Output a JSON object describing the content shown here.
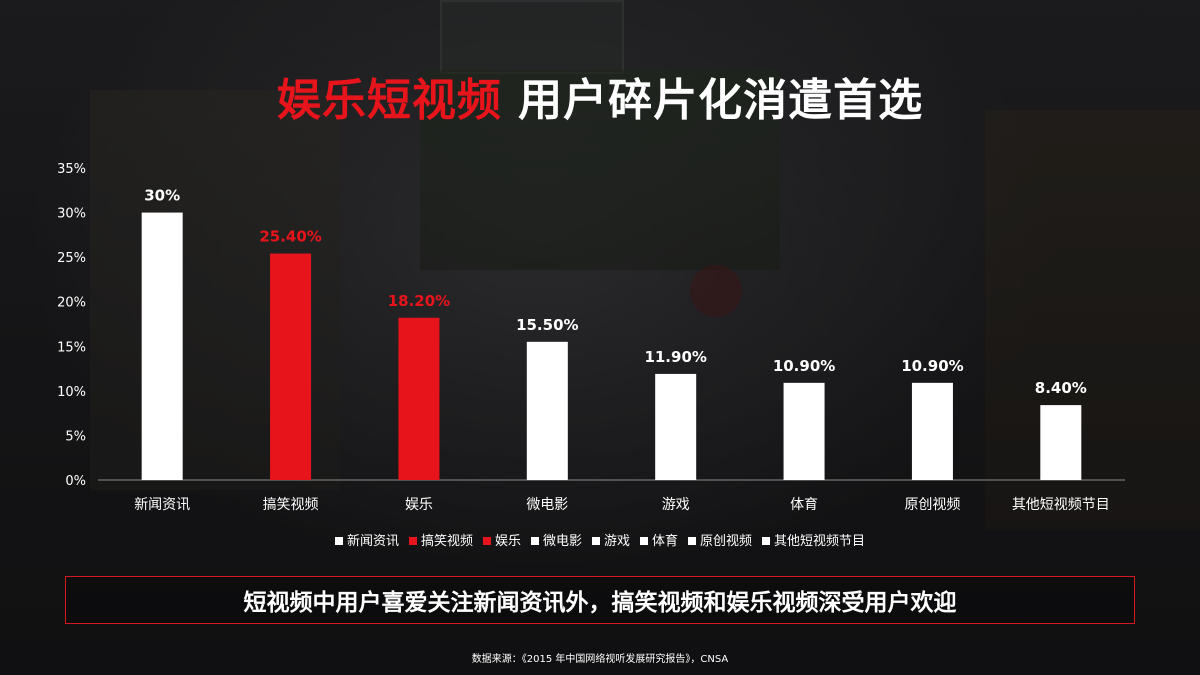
{
  "title": {
    "highlight": "娱乐短视频",
    "rest": "用户碎片化消遣首选"
  },
  "colors": {
    "accent_red": "#e8141b",
    "bar_white": "#ffffff",
    "label_red": "#e8141b",
    "label_white": "#ffffff"
  },
  "chart_data": {
    "type": "bar",
    "categories": [
      "新闻资讯",
      "搞笑视频",
      "娱乐",
      "微电影",
      "游戏",
      "体育",
      "原创视频",
      "其他短视频节目"
    ],
    "values": [
      30,
      25.4,
      18.2,
      15.5,
      11.9,
      10.9,
      10.9,
      8.4
    ],
    "value_labels": [
      "30%",
      "25.40%",
      "18.20%",
      "15.50%",
      "11.90%",
      "10.90%",
      "10.90%",
      "8.40%"
    ],
    "bar_colors": [
      "#ffffff",
      "#e8141b",
      "#e8141b",
      "#ffffff",
      "#ffffff",
      "#ffffff",
      "#ffffff",
      "#ffffff"
    ],
    "label_colors": [
      "#ffffff",
      "#e8141b",
      "#e8141b",
      "#ffffff",
      "#ffffff",
      "#ffffff",
      "#ffffff",
      "#ffffff"
    ],
    "y_ticks": [
      "0%",
      "5%",
      "10%",
      "15%",
      "20%",
      "25%",
      "30%",
      "35%"
    ],
    "ylim": [
      0,
      35
    ],
    "xlabel": "",
    "ylabel": "",
    "grid": false,
    "legend_position": "bottom"
  },
  "legend": [
    {
      "label": "新闻资讯",
      "color": "#ffffff"
    },
    {
      "label": "搞笑视频",
      "color": "#e8141b"
    },
    {
      "label": "娱乐",
      "color": "#e8141b"
    },
    {
      "label": "微电影",
      "color": "#ffffff"
    },
    {
      "label": "游戏",
      "color": "#ffffff"
    },
    {
      "label": "体育",
      "color": "#ffffff"
    },
    {
      "label": "原创视频",
      "color": "#ffffff"
    },
    {
      "label": "其他短视频节目",
      "color": "#ffffff"
    }
  ],
  "callout": "短视频中用户喜爱关注新闻资讯外，搞笑视频和娱乐视频深受用户欢迎",
  "source": "数据来源：《2015 年中国网络视听发展研究报告》，CNSA"
}
